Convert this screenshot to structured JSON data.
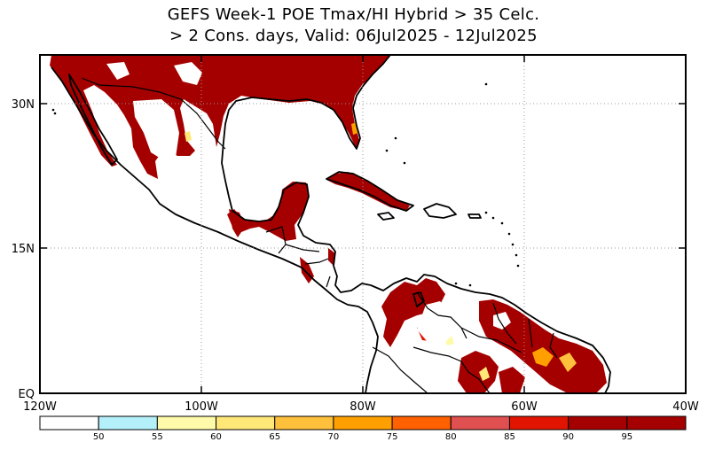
{
  "title_line1": "GEFS Week-1 POE Tmax/HI Hybrid > 35 Celc.",
  "title_line2": "> 2 Cons. days, Valid: 06Jul2025 - 12Jul2025",
  "lat_labels": [
    "30N",
    "15N",
    "EQ"
  ],
  "lon_labels": [
    "120W",
    "100W",
    "80W",
    "60W",
    "40W"
  ],
  "colorbar": {
    "labels": [
      "50",
      "55",
      "60",
      "65",
      "70",
      "75",
      "80",
      "85",
      "90",
      "95"
    ],
    "colors": [
      "#ffffff",
      "#b4f0fa",
      "#fffaaa",
      "#ffe878",
      "#ffc03c",
      "#ffa000",
      "#ff6000",
      "#e15050",
      "#e11400",
      "#a50000",
      "#a50000"
    ]
  },
  "map": {
    "land_color": "#ffffff",
    "hot_color": "#a50000",
    "border_color": "#000000"
  }
}
